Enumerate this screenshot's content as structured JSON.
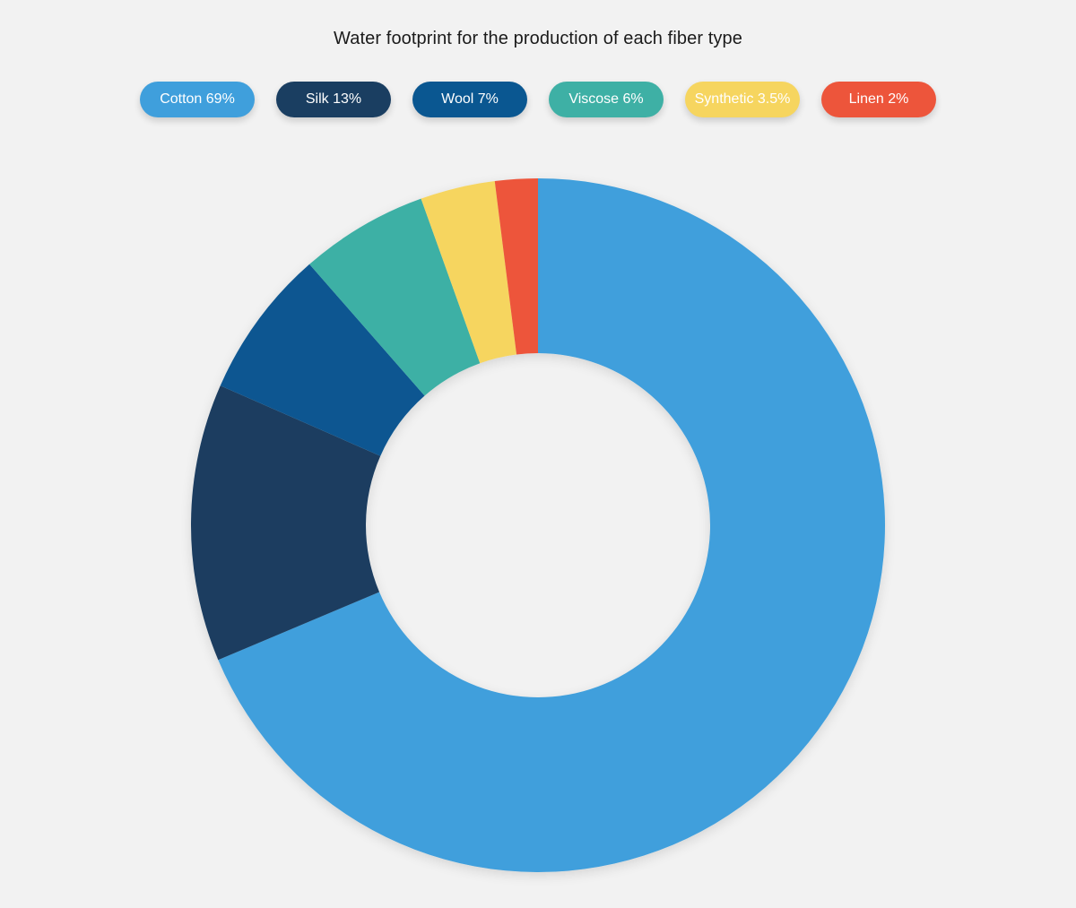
{
  "chart_data": {
    "type": "pie",
    "variant": "donut",
    "title": "Water footprint for the production of each fiber type",
    "legend_placement": "top",
    "categories": [
      "Cotton",
      "Silk",
      "Wool",
      "Viscose",
      "Synthetic",
      "Linen"
    ],
    "values": [
      69,
      13,
      7,
      6,
      3.5,
      2
    ],
    "legend_labels": [
      "Cotton 69%",
      "Silk 13%",
      "Wool 7%",
      "Viscose 6%",
      "Synthetic 3.5%",
      "Linen 2%"
    ],
    "colors": [
      "#3f9fdc",
      "#1a3e61",
      "#0a5791",
      "#3eb0a5",
      "#f6d55f",
      "#ed553b"
    ],
    "start": "top, clockwise"
  }
}
